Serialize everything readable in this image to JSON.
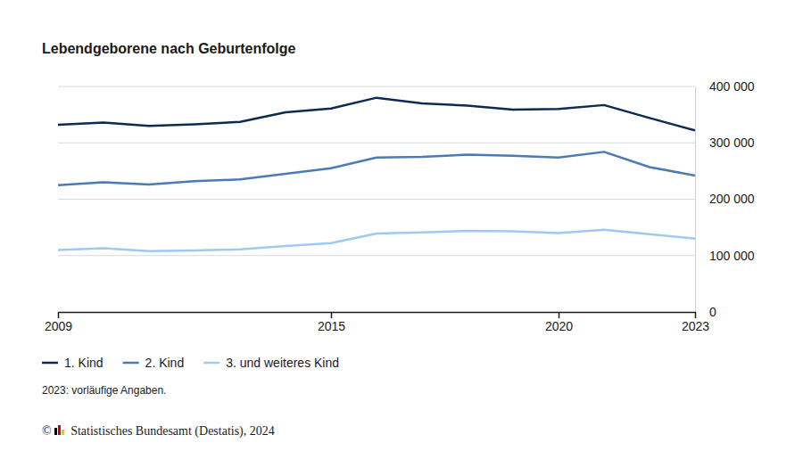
{
  "chart_data": {
    "type": "line",
    "title": "Lebendgeborene nach Geburtenfolge",
    "annotations": [
      "2023: vorläufige Angaben.",
      "© Statistisches Bundesamt (Destatis), 2024"
    ],
    "x": [
      2009,
      2010,
      2011,
      2012,
      2013,
      2014,
      2015,
      2016,
      2017,
      2018,
      2019,
      2020,
      2021,
      2022,
      2023
    ],
    "series": [
      {
        "name": "1. Kind",
        "color": "#0d2b52",
        "values": [
          332000,
          336000,
          330000,
          333000,
          337000,
          354000,
          361000,
          380000,
          370000,
          366000,
          359000,
          360000,
          367000,
          344000,
          322000
        ]
      },
      {
        "name": "2. Kind",
        "color": "#4a7ab8",
        "values": [
          225000,
          230000,
          226000,
          232000,
          235000,
          245000,
          255000,
          274000,
          275000,
          279000,
          277000,
          274000,
          284000,
          257000,
          242000
        ]
      },
      {
        "name": "3. und weiteres Kind",
        "color": "#9ec9f5",
        "values": [
          110000,
          113000,
          108000,
          109000,
          111000,
          117000,
          122000,
          139000,
          141000,
          144000,
          143000,
          140000,
          146000,
          138000,
          130000
        ]
      }
    ],
    "xlim": [
      2009,
      2023
    ],
    "xticks": [
      2009,
      2015,
      2020,
      2023
    ],
    "ylim": [
      0,
      400000
    ],
    "yticks": [
      0,
      {
        "value": 100000,
        "label": "100 000"
      },
      {
        "value": 200000,
        "label": "200 000"
      },
      {
        "value": 300000,
        "label": "300 000"
      },
      {
        "value": 400000,
        "label": "400 000"
      }
    ],
    "grid": true,
    "legend": "bottom-left"
  }
}
